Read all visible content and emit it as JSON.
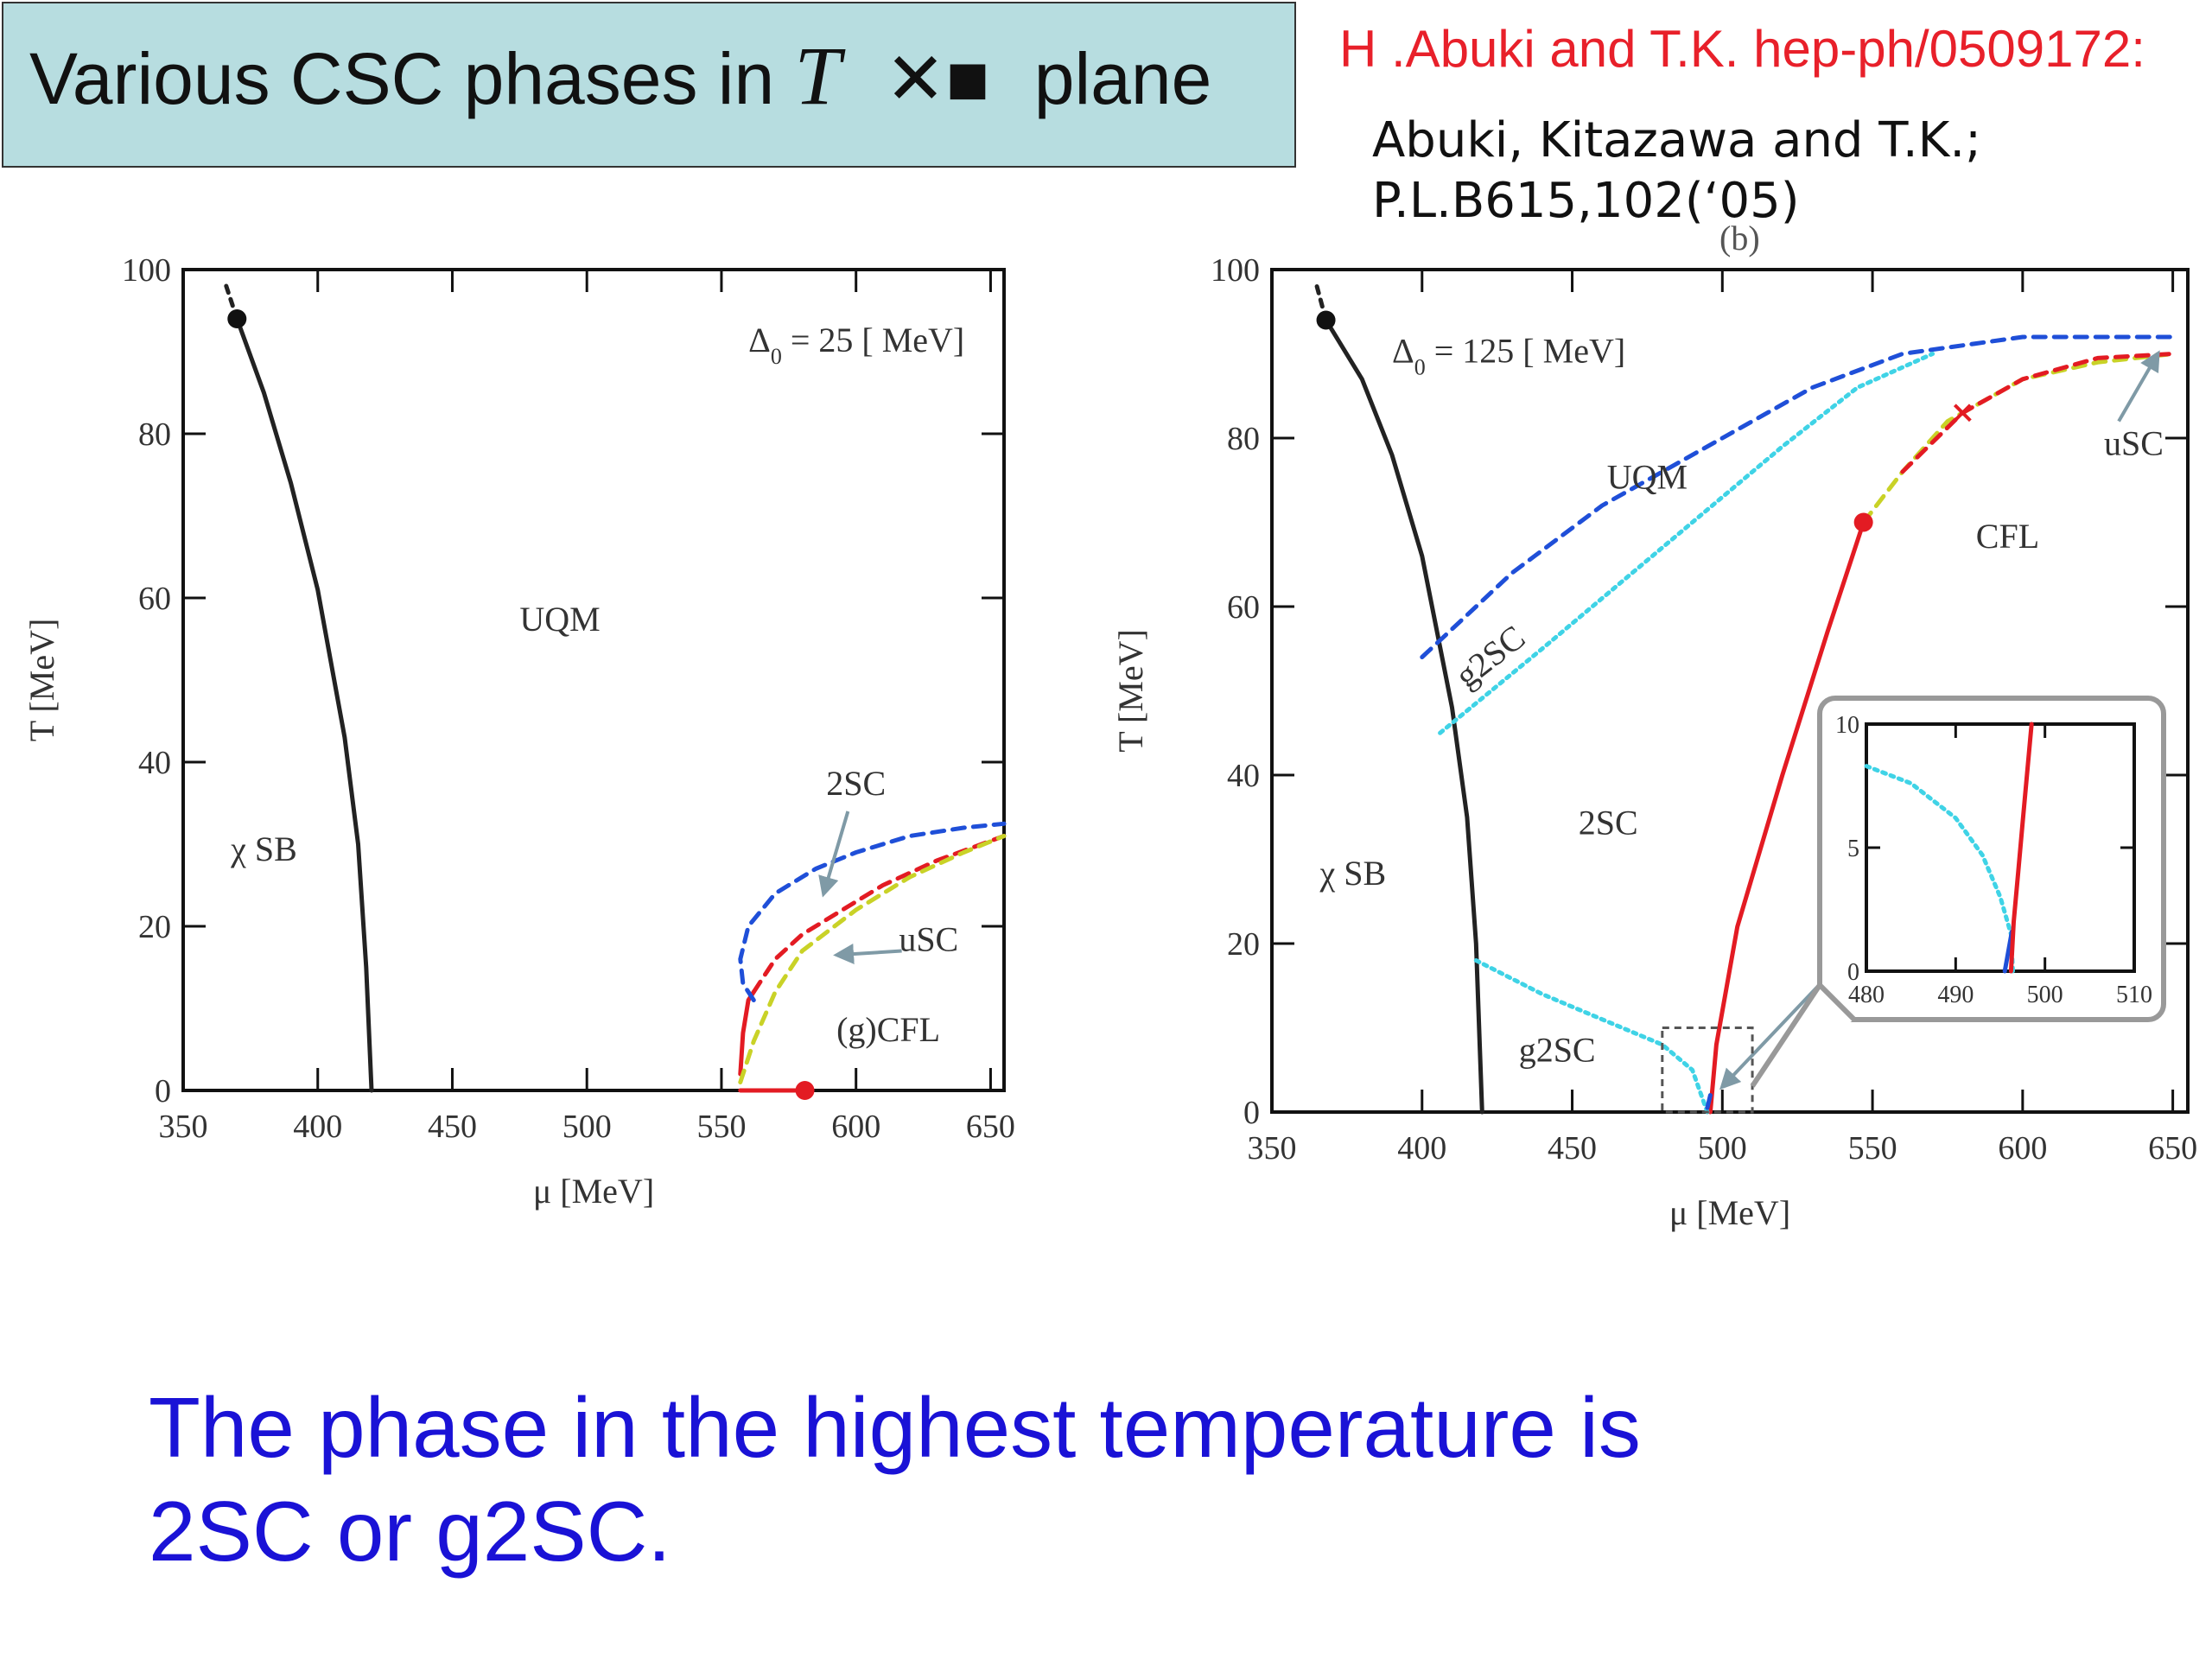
{
  "header": {
    "title_prefix": "Various CSC phases in",
    "title_symbol": "T",
    "title_glyph": "✕■",
    "title_suffix": "plane",
    "reference_red": "H .Abuki and T.K. hep-ph/0509172:",
    "reference_line1": "Abuki, Kitazawa and T.K.;",
    "reference_line2": "P.L.B615,102(‘05)",
    "panel_label": "(b)"
  },
  "conclusion": {
    "line1": "The phase in the highest temperature is",
    "line2": "2SC or g2SC."
  },
  "colors": {
    "black_line": "#222222",
    "blue": "#1f4fd8",
    "cyan": "#3fd3e6",
    "red": "#e31b23",
    "yellow": "#c9d227",
    "arrow": "#7f9aa6",
    "title_bg": "#b7dde0",
    "conclusion_text": "#1a12d6"
  },
  "chart_data": [
    {
      "type": "line",
      "xlabel": "μ [MeV]",
      "ylabel": "T [MeV]",
      "xlim": [
        350,
        655
      ],
      "ylim": [
        0,
        100
      ],
      "xticks": [
        350,
        400,
        450,
        500,
        550,
        600,
        650
      ],
      "yticks": [
        0,
        20,
        40,
        60,
        80,
        100
      ],
      "annotation": "Δ = 25 [ MeV]",
      "annotation_sub": "0",
      "series": [
        {
          "style": "black_solid",
          "points": [
            [
              370,
              94
            ],
            [
              380,
              85
            ],
            [
              390,
              74
            ],
            [
              400,
              61
            ],
            [
              410,
              43
            ],
            [
              415,
              30
            ],
            [
              418,
              15
            ],
            [
              420,
              0
            ]
          ]
        },
        {
          "style": "black_dashed",
          "points": [
            [
              366,
              98
            ],
            [
              370,
              94
            ]
          ]
        },
        {
          "style": "red_solid",
          "points": [
            [
              557,
              0
            ],
            [
              581,
              0
            ]
          ]
        },
        {
          "style": "red_solid",
          "points": [
            [
              557,
              2
            ],
            [
              558,
              7
            ],
            [
              560,
              11
            ],
            [
              562,
              12
            ]
          ]
        },
        {
          "style": "blue_dashed",
          "points": [
            [
              562,
              11
            ],
            [
              558,
              13
            ],
            [
              557,
              16
            ],
            [
              560,
              20
            ],
            [
              570,
              24
            ],
            [
              585,
              27
            ],
            [
              600,
              29
            ],
            [
              620,
              31
            ],
            [
              640,
              32
            ],
            [
              655,
              32.5
            ]
          ]
        },
        {
          "style": "red_dashed",
          "points": [
            [
              562,
              12
            ],
            [
              570,
              16
            ],
            [
              580,
              19
            ],
            [
              595,
              22
            ],
            [
              610,
              25
            ],
            [
              630,
              28
            ],
            [
              655,
              31
            ]
          ]
        },
        {
          "style": "yellow_dashed",
          "points": [
            [
              557,
              1
            ],
            [
              562,
              6
            ],
            [
              570,
              12
            ],
            [
              580,
              17
            ],
            [
              600,
              22
            ],
            [
              620,
              26
            ],
            [
              640,
              29
            ],
            [
              655,
              31
            ]
          ]
        }
      ],
      "markers": [
        {
          "x": 370,
          "y": 94,
          "color": "black"
        },
        {
          "x": 581,
          "y": 0,
          "color": "red"
        }
      ],
      "labels": [
        {
          "text": "UQM",
          "x": 490,
          "y": 56
        },
        {
          "text": "χ SB",
          "x": 380,
          "y": 28
        },
        {
          "text": "2SC",
          "x": 600,
          "y": 36
        },
        {
          "text": "uSC",
          "x": 627,
          "y": 17
        },
        {
          "text": "(g)CFL",
          "x": 612,
          "y": 6
        }
      ],
      "arrows": [
        {
          "from": [
            597,
            34
          ],
          "to": [
            588,
            24
          ]
        },
        {
          "from": [
            617,
            17
          ],
          "to": [
            593,
            16.5
          ]
        }
      ]
    },
    {
      "type": "line",
      "xlabel": "μ [MeV]",
      "ylabel": "T [MeV]",
      "xlim": [
        350,
        655
      ],
      "ylim": [
        0,
        100
      ],
      "xticks": [
        350,
        400,
        450,
        500,
        550,
        600,
        650
      ],
      "yticks": [
        0,
        20,
        40,
        60,
        80,
        100
      ],
      "annotation": "Δ = 125 [ MeV]",
      "annotation_sub": "0",
      "series": [
        {
          "style": "black_solid",
          "points": [
            [
              368,
              94
            ],
            [
              380,
              87
            ],
            [
              390,
              78
            ],
            [
              400,
              66
            ],
            [
              410,
              48
            ],
            [
              415,
              35
            ],
            [
              418,
              20
            ],
            [
              420,
              0
            ]
          ]
        },
        {
          "style": "black_dashed",
          "points": [
            [
              365,
              98
            ],
            [
              368,
              94
            ]
          ]
        },
        {
          "style": "blue_dashed",
          "points": [
            [
              400,
              54
            ],
            [
              430,
              64
            ],
            [
              460,
              72
            ],
            [
              500,
              80
            ],
            [
              530,
              86
            ],
            [
              560,
              90
            ],
            [
              600,
              92
            ],
            [
              650,
              92
            ]
          ]
        },
        {
          "style": "cyan_dotted",
          "points": [
            [
              406,
              45
            ],
            [
              440,
              55
            ],
            [
              480,
              67
            ],
            [
              520,
              79
            ],
            [
              545,
              86
            ],
            [
              570,
              90
            ]
          ]
        },
        {
          "style": "red_solid",
          "points": [
            [
              496,
              0
            ],
            [
              498,
              8
            ],
            [
              505,
              22
            ],
            [
              520,
              40
            ],
            [
              535,
              57
            ],
            [
              547,
              70
            ]
          ]
        },
        {
          "style": "yellow_dashed",
          "points": [
            [
              547,
              70
            ],
            [
              560,
              76
            ],
            [
              575,
              82
            ],
            [
              600,
              87
            ],
            [
              625,
              89
            ],
            [
              650,
              90
            ]
          ]
        },
        {
          "style": "red_dashed",
          "points": [
            [
              560,
              76
            ],
            [
              580,
              83
            ],
            [
              600,
              87
            ],
            [
              625,
              89.5
            ],
            [
              650,
              90
            ]
          ]
        },
        {
          "style": "cyan_dotted",
          "points": [
            [
              418,
              18
            ],
            [
              440,
              14
            ],
            [
              460,
              11
            ],
            [
              480,
              8
            ],
            [
              490,
              5
            ],
            [
              495,
              0
            ]
          ]
        },
        {
          "style": "blue_solid",
          "points": [
            [
              495,
              0.5
            ],
            [
              496,
              2
            ]
          ]
        }
      ],
      "markers": [
        {
          "x": 368,
          "y": 94,
          "color": "black"
        },
        {
          "x": 547,
          "y": 70,
          "color": "red"
        }
      ],
      "cross_marker": {
        "x": 580,
        "y": 83
      },
      "labels": [
        {
          "text": "UQM",
          "x": 475,
          "y": 74
        },
        {
          "text": "CFL",
          "x": 595,
          "y": 67
        },
        {
          "text": "uSC",
          "x": 637,
          "y": 78
        },
        {
          "text": "2SC",
          "x": 462,
          "y": 33
        },
        {
          "text": "χ SB",
          "x": 377,
          "y": 27
        },
        {
          "text": "g2SC",
          "x": 445,
          "y": 6
        },
        {
          "text": "g2SC",
          "x": 425,
          "y": 53,
          "rotate": -38
        }
      ],
      "arrows": [
        {
          "from": [
            632,
            82
          ],
          "to": [
            645,
            90
          ]
        },
        {
          "from": [
            540,
            18
          ],
          "to": [
            500,
            3
          ]
        }
      ],
      "zoom_box": {
        "x0": 480,
        "x1": 510,
        "y0": 0,
        "y1": 10
      },
      "inset": {
        "xlim": [
          480,
          510
        ],
        "ylim": [
          0,
          10
        ],
        "xticks": [
          480,
          490,
          500,
          510
        ],
        "yticks": [
          0,
          5,
          10
        ],
        "series": [
          {
            "style": "cyan_dotted",
            "points": [
              [
                480,
                8.3
              ],
              [
                485,
                7.6
              ],
              [
                490,
                6.2
              ],
              [
                493,
                4.7
              ],
              [
                495,
                3.0
              ],
              [
                496.2,
                1.5
              ],
              [
                496.4,
                0
              ]
            ]
          },
          {
            "style": "blue_solid",
            "points": [
              [
                495.5,
                0
              ],
              [
                496.3,
                1.6
              ]
            ]
          },
          {
            "style": "red_solid",
            "points": [
              [
                496.2,
                0
              ],
              [
                496.5,
                2
              ],
              [
                497,
                4
              ],
              [
                497.5,
                6
              ],
              [
                498,
                8
              ],
              [
                498.5,
                10
              ]
            ]
          }
        ]
      }
    }
  ]
}
